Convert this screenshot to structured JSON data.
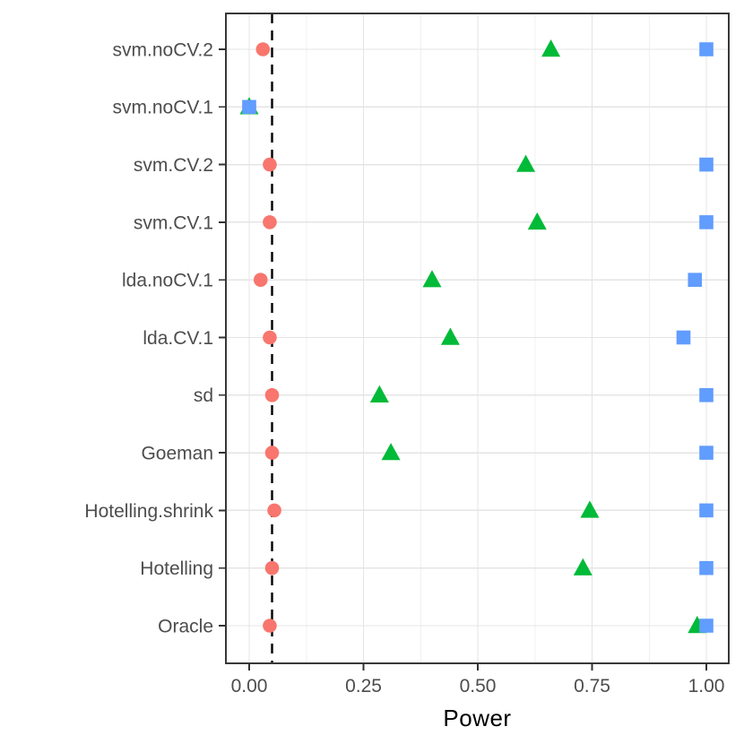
{
  "chart_data": {
    "type": "scatter",
    "subtype": "horizontal-dot-plot",
    "title": "",
    "xlabel": "Power",
    "ylabel": "",
    "xlim": [
      -0.051,
      1.049
    ],
    "x_ticks": [
      0,
      0.25,
      0.5,
      0.75,
      1.0
    ],
    "x_tick_labels": [
      "0.00",
      "0.25",
      "0.50",
      "0.75",
      "1.00"
    ],
    "x_minor_ticks": [
      0.125,
      0.375,
      0.625,
      0.875
    ],
    "grid": "on",
    "legend": "none",
    "reference_line": {
      "x": 0.05,
      "style": "dashed",
      "color": "#000000"
    },
    "categories": [
      "svm.noCV.2",
      "svm.noCV.1",
      "svm.CV.2",
      "svm.CV.1",
      "lda.noCV.1",
      "lda.CV.1",
      "sd",
      "Goeman",
      "Hotelling.shrink",
      "Hotelling",
      "Oracle"
    ],
    "series": [
      {
        "name": "red-circle-series",
        "marker": "circle",
        "color": "#F8766D",
        "values": [
          0.03,
          0.0,
          0.045,
          0.045,
          0.025,
          0.045,
          0.05,
          0.05,
          0.055,
          0.05,
          0.045
        ]
      },
      {
        "name": "green-triangle-series",
        "marker": "triangle",
        "color": "#00BA38",
        "values": [
          0.66,
          0.0,
          0.605,
          0.63,
          0.4,
          0.44,
          0.285,
          0.31,
          0.745,
          0.73,
          0.98
        ]
      },
      {
        "name": "blue-square-series",
        "marker": "square",
        "color": "#619CFF",
        "values": [
          1.0,
          0.0,
          1.0,
          1.0,
          0.975,
          0.95,
          1.0,
          1.0,
          1.0,
          1.0,
          1.0
        ]
      }
    ],
    "style": {
      "panel_border_color": "#383838",
      "grid_major_color": "#E4E4E4",
      "grid_minor_color": "#F0F0F0",
      "tick_color": "#333333",
      "axis_text_color": "#4D4D4D",
      "background": "#FFFFFF"
    }
  }
}
